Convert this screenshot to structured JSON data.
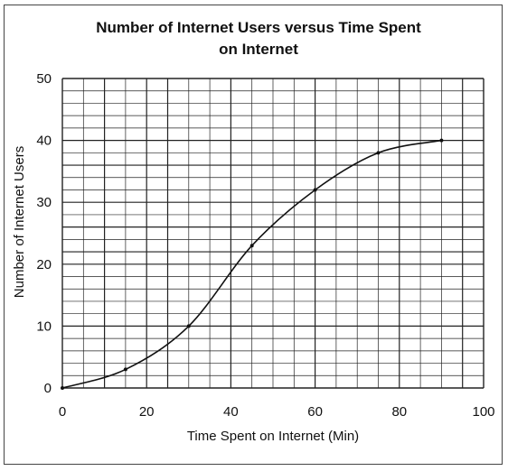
{
  "chart_data": {
    "type": "line",
    "title_line1": "Number of Internet Users versus Time Spent",
    "title_line2": "on Internet",
    "xlabel": "Time Spent on Internet (Min)",
    "ylabel": "Number of Internet Users",
    "xlim": [
      0,
      100
    ],
    "ylim": [
      0,
      50
    ],
    "xticks": [
      0,
      20,
      40,
      60,
      80,
      100
    ],
    "yticks": [
      0,
      10,
      20,
      30,
      40,
      50
    ],
    "grid": true,
    "points": [
      {
        "x": 0,
        "y": 0
      },
      {
        "x": 15,
        "y": 3
      },
      {
        "x": 30,
        "y": 10
      },
      {
        "x": 45,
        "y": 23
      },
      {
        "x": 60,
        "y": 32
      },
      {
        "x": 75,
        "y": 38
      },
      {
        "x": 90,
        "y": 40
      }
    ],
    "line_color": "#111111",
    "grid_color": "#222222"
  }
}
